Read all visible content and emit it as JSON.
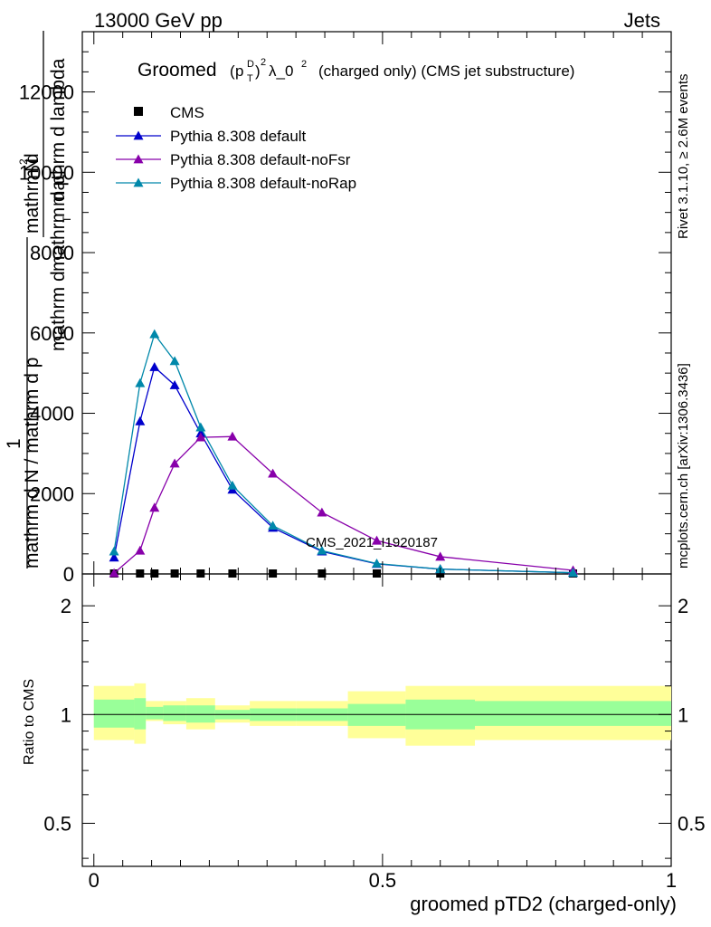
{
  "header": {
    "left": "13000 GeV pp",
    "right": "Jets"
  },
  "title": {
    "prefix": "Groomed",
    "sup2": "2",
    "d": "D",
    "t": "T",
    "lambda_text": "λ_0",
    "suffix": "(charged only) (CMS jet substructure)",
    "p": "p",
    "paren_open": "(",
    "paren_close": ")"
  },
  "side_notes": {
    "rivet": "Rivet 3.1.10, ≥ 2.6M events",
    "mcplots": "mcplots.cern.ch [arXiv:1306.3436]"
  },
  "watermark": "CMS_2021_I1920187",
  "ylabel_main": {
    "line1": "1",
    "denominator": "mathrm d N / mathrm d p",
    "numerator_frac": "mathrm d",
    "numerator_n": "N",
    "numerator_sup": "2",
    "den2": "mathrm d p",
    "den2_sub": "T",
    "den2_rest": "mathrm d lambda",
    "lower_den": "mathrm d N / mathrm d p",
    "lower_tail": "mathrm d",
    "mathrm_d_lambda": "mathrm d lambda",
    "mathrm_dN": "mathrm d",
    "mathrm_dp": "mathrm d p",
    "p_T": "T",
    "full_top": "mathrm d",
    "full_top_n": "N",
    "n_sup": "2",
    "den_mid": "mathrm d p",
    "den_tail": "mathrm d lambda",
    "bottom_frac": "mathrm d N / mathrm d p",
    "bottom_tail": "mathrm d",
    "bottom_mid": "mathrm d"
  },
  "ylabel_ratio": "Ratio to CMS",
  "xlabel": "groomed pTD2 (charged-only)",
  "legend": [
    {
      "label": "CMS",
      "color": "#000000",
      "marker": "square"
    },
    {
      "label": "Pythia 8.308 default",
      "color": "#0000cc",
      "marker": "triangle"
    },
    {
      "label": "Pythia 8.308 default-noFsr",
      "color": "#8800aa",
      "marker": "triangle"
    },
    {
      "label": "Pythia 8.308 default-noRap",
      "color": "#0088aa",
      "marker": "triangle"
    }
  ],
  "chart_data": [
    {
      "type": "line",
      "panel": "main",
      "xlim": [
        -0.02,
        1.0
      ],
      "ylim": [
        0,
        13500
      ],
      "yticks": [
        0,
        2000,
        4000,
        6000,
        8000,
        10000,
        12000
      ],
      "ytick_labels": [
        "0",
        "2000",
        "4000",
        "6000",
        "8000",
        "10000",
        "12000"
      ],
      "series": [
        {
          "name": "CMS",
          "color": "#000000",
          "marker": "square",
          "x": [
            0.035,
            0.08,
            0.105,
            0.14,
            0.185,
            0.24,
            0.31,
            0.395,
            0.49,
            0.6,
            0.83
          ],
          "y": [
            0,
            0,
            0,
            0,
            0,
            0,
            0,
            0,
            0,
            0,
            0
          ]
        },
        {
          "name": "Pythia 8.308 default",
          "color": "#0000cc",
          "marker": "triangle",
          "x": [
            0.035,
            0.08,
            0.105,
            0.14,
            0.185,
            0.24,
            0.31,
            0.395,
            0.49,
            0.6,
            0.83
          ],
          "y": [
            410,
            3800,
            5150,
            4700,
            3500,
            2100,
            1150,
            560,
            250,
            120,
            30
          ]
        },
        {
          "name": "Pythia 8.308 default-noFsr",
          "color": "#8800aa",
          "marker": "triangle",
          "x": [
            0.035,
            0.08,
            0.105,
            0.14,
            0.185,
            0.24,
            0.31,
            0.395,
            0.49,
            0.6,
            0.83
          ],
          "y": [
            20,
            580,
            1650,
            2750,
            3400,
            3420,
            2500,
            1530,
            830,
            430,
            90
          ]
        },
        {
          "name": "Pythia 8.308 default-noRap",
          "color": "#0088aa",
          "marker": "triangle",
          "x": [
            0.035,
            0.08,
            0.105,
            0.14,
            0.185,
            0.24,
            0.31,
            0.395,
            0.49,
            0.6,
            0.83
          ],
          "y": [
            560,
            4750,
            5970,
            5300,
            3650,
            2200,
            1200,
            580,
            260,
            120,
            30
          ]
        }
      ]
    },
    {
      "type": "area",
      "panel": "ratio",
      "xlim": [
        -0.02,
        1.0
      ],
      "ylim": [
        0.38,
        2.45
      ],
      "log_scale": true,
      "yticks": [
        0.5,
        1,
        2
      ],
      "ytick_labels": [
        "0.5",
        "1",
        "2"
      ],
      "xticks": [
        0,
        0.5,
        1
      ],
      "xtick_labels": [
        "0",
        "0.5",
        "1"
      ],
      "reference_line": 1,
      "bins": [
        {
          "x0": 0.0,
          "x1": 0.07,
          "inner": [
            0.92,
            1.1
          ],
          "outer": [
            0.85,
            1.2
          ]
        },
        {
          "x0": 0.07,
          "x1": 0.09,
          "inner": [
            0.91,
            1.11
          ],
          "outer": [
            0.83,
            1.22
          ]
        },
        {
          "x0": 0.09,
          "x1": 0.12,
          "inner": [
            0.97,
            1.05
          ],
          "outer": [
            0.96,
            1.09
          ]
        },
        {
          "x0": 0.12,
          "x1": 0.16,
          "inner": [
            0.96,
            1.06
          ],
          "outer": [
            0.94,
            1.09
          ]
        },
        {
          "x0": 0.16,
          "x1": 0.21,
          "inner": [
            0.95,
            1.06
          ],
          "outer": [
            0.91,
            1.11
          ]
        },
        {
          "x0": 0.21,
          "x1": 0.27,
          "inner": [
            0.97,
            1.03
          ],
          "outer": [
            0.95,
            1.06
          ]
        },
        {
          "x0": 0.27,
          "x1": 0.35,
          "inner": [
            0.96,
            1.04
          ],
          "outer": [
            0.93,
            1.09
          ]
        },
        {
          "x0": 0.35,
          "x1": 0.44,
          "inner": [
            0.96,
            1.04
          ],
          "outer": [
            0.93,
            1.09
          ]
        },
        {
          "x0": 0.44,
          "x1": 0.54,
          "inner": [
            0.93,
            1.07
          ],
          "outer": [
            0.86,
            1.16
          ]
        },
        {
          "x0": 0.54,
          "x1": 0.66,
          "inner": [
            0.91,
            1.1
          ],
          "outer": [
            0.82,
            1.2
          ]
        },
        {
          "x0": 0.66,
          "x1": 1.0,
          "inner": [
            0.93,
            1.09
          ],
          "outer": [
            0.85,
            1.2
          ]
        }
      ]
    }
  ]
}
